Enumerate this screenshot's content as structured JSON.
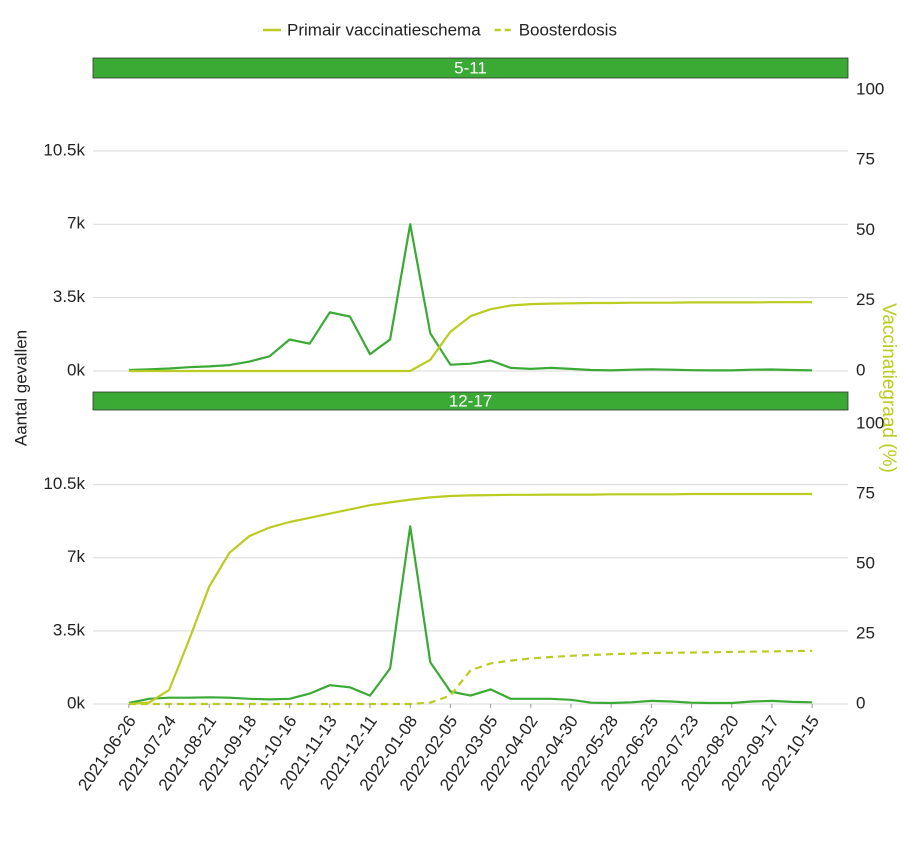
{
  "chart_data": [
    {
      "type": "line",
      "title": "5-11",
      "x": [
        "2021-06-26",
        "2021-07-10",
        "2021-07-24",
        "2021-08-07",
        "2021-08-21",
        "2021-09-04",
        "2021-09-18",
        "2021-10-02",
        "2021-10-16",
        "2021-10-30",
        "2021-11-13",
        "2021-11-27",
        "2021-12-11",
        "2021-12-25",
        "2022-01-08",
        "2022-01-22",
        "2022-02-05",
        "2022-02-19",
        "2022-03-05",
        "2022-03-19",
        "2022-04-02",
        "2022-04-16",
        "2022-04-30",
        "2022-05-14",
        "2022-05-28",
        "2022-06-11",
        "2022-06-25",
        "2022-07-09",
        "2022-07-23",
        "2022-08-06",
        "2022-08-20",
        "2022-09-03",
        "2022-09-17",
        "2022-10-01",
        "2022-10-15"
      ],
      "series": [
        {
          "color": "#3aaa35",
          "values": [
            50,
            80,
            120,
            180,
            220,
            280,
            450,
            700,
            1500,
            1300,
            2800,
            2600,
            800,
            1500,
            7000,
            1800,
            300,
            350,
            500,
            150,
            100,
            150,
            100,
            50,
            30,
            60,
            80,
            60,
            40,
            30,
            30,
            60,
            70,
            50,
            30
          ]
        },
        {
          "color": "#bccb1f",
          "axis": "y2",
          "values": [
            0,
            0,
            0,
            0,
            0,
            0,
            0,
            0,
            0,
            0,
            0,
            0,
            0,
            0,
            0,
            4,
            14,
            19.5,
            22,
            23.3,
            23.8,
            24,
            24.1,
            24.2,
            24.2,
            24.3,
            24.3,
            24.3,
            24.4,
            24.4,
            24.4,
            24.4,
            24.5,
            24.5,
            24.5
          ]
        }
      ],
      "xlim": [
        "2021-06-01",
        "2022-11-09"
      ],
      "ylim": [
        0,
        13400
      ],
      "yticks": [
        {
          "value": 0,
          "label": "0k"
        },
        {
          "value": 3500,
          "label": "3.5k"
        },
        {
          "value": 7000,
          "label": "7k"
        },
        {
          "value": 10500,
          "label": "10.5k"
        }
      ],
      "y2lim": [
        0,
        100
      ],
      "y2ticks": [
        0,
        25,
        50,
        75,
        100
      ],
      "grid": true
    },
    {
      "type": "line",
      "title": "12-17",
      "x": [
        "2021-06-26",
        "2021-07-10",
        "2021-07-24",
        "2021-08-07",
        "2021-08-21",
        "2021-09-04",
        "2021-09-18",
        "2021-10-02",
        "2021-10-16",
        "2021-10-30",
        "2021-11-13",
        "2021-11-27",
        "2021-12-11",
        "2021-12-25",
        "2022-01-08",
        "2022-01-22",
        "2022-02-05",
        "2022-02-19",
        "2022-03-05",
        "2022-03-19",
        "2022-04-02",
        "2022-04-16",
        "2022-04-30",
        "2022-05-14",
        "2022-05-28",
        "2022-06-11",
        "2022-06-25",
        "2022-07-09",
        "2022-07-23",
        "2022-08-06",
        "2022-08-20",
        "2022-09-03",
        "2022-09-17",
        "2022-10-01",
        "2022-10-15"
      ],
      "series": [
        {
          "color": "#3aaa35",
          "values": [
            50,
            250,
            300,
            300,
            320,
            300,
            250,
            220,
            250,
            500,
            900,
            800,
            400,
            1700,
            8500,
            2000,
            600,
            400,
            700,
            250,
            250,
            250,
            200,
            60,
            50,
            80,
            150,
            120,
            60,
            50,
            50,
            120,
            150,
            100,
            80
          ]
        },
        {
          "name": "Primair vaccinatieschema",
          "color": "#bccb1f",
          "axis": "y2",
          "values": [
            0,
            0.5,
            5,
            23,
            42,
            54,
            60,
            63,
            65,
            66.5,
            68,
            69.5,
            71,
            72,
            73,
            73.8,
            74.3,
            74.5,
            74.6,
            74.7,
            74.7,
            74.8,
            74.8,
            74.8,
            74.9,
            74.9,
            74.9,
            74.9,
            75,
            75,
            75,
            75,
            75,
            75,
            75
          ]
        },
        {
          "name": "Boosterdosis",
          "color": "#bccb1f",
          "axis": "y2",
          "line_style": "dashed",
          "values": [
            0,
            0,
            0,
            0,
            0,
            0,
            0,
            0,
            0,
            0,
            0,
            0,
            0,
            0,
            0,
            0.5,
            3,
            12,
            14.5,
            15.5,
            16.3,
            16.8,
            17.2,
            17.5,
            17.8,
            18,
            18.2,
            18.3,
            18.4,
            18.5,
            18.6,
            18.7,
            18.8,
            18.9,
            19
          ]
        }
      ],
      "xlim": [
        "2021-06-01",
        "2022-11-09"
      ],
      "ylim": [
        0,
        13400
      ],
      "yticks": [
        {
          "value": 0,
          "label": "0k"
        },
        {
          "value": 3500,
          "label": "3.5k"
        },
        {
          "value": 7000,
          "label": "7k"
        },
        {
          "value": 10500,
          "label": "10.5k"
        }
      ],
      "y2lim": [
        0,
        100
      ],
      "y2ticks": [
        0,
        25,
        50,
        75,
        100
      ],
      "grid": true,
      "xticks": [
        "2021-06-26",
        "2021-07-24",
        "2021-08-21",
        "2021-09-18",
        "2021-10-16",
        "2021-11-13",
        "2021-12-11",
        "2022-01-08",
        "2022-02-05",
        "2022-03-05",
        "2022-04-02",
        "2022-04-30",
        "2022-05-28",
        "2022-06-25",
        "2022-07-23",
        "2022-08-20",
        "2022-09-17",
        "2022-10-15"
      ],
      "ylabel": "Aantal gevallen",
      "y2label": "Vaccinatiegraad (%)"
    }
  ]
}
